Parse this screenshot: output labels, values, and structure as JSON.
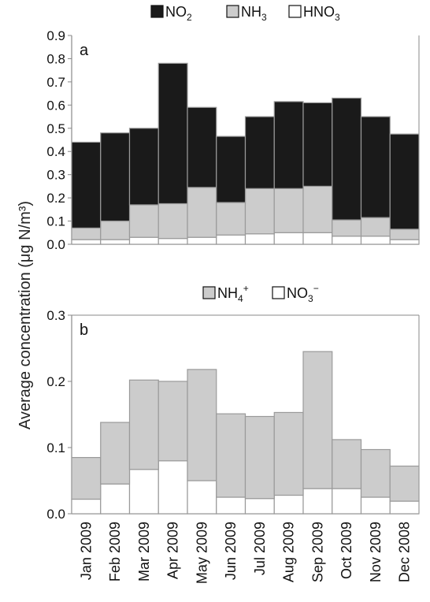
{
  "ylabel": "Average concentration (μg N/m³)",
  "months": [
    "Jan 2009",
    "Feb 2009",
    "Mar 2009",
    "Apr 2009",
    "May 2009",
    "Jun 2009",
    "Jul 2009",
    "Aug 2009",
    "Sep 2009",
    "Oct 2009",
    "Nov 2009",
    "Dec 2008"
  ],
  "chart_data": [
    {
      "type": "bar",
      "stacked": true,
      "panel": "a",
      "ylim": [
        0,
        0.9
      ],
      "yticks": [
        "0.0",
        "0.1",
        "0.2",
        "0.3",
        "0.4",
        "0.5",
        "0.6",
        "0.7",
        "0.8",
        "0.9"
      ],
      "legend_position": "top",
      "categories": [
        "Jan 2009",
        "Feb 2009",
        "Mar 2009",
        "Apr 2009",
        "May 2009",
        "Jun 2009",
        "Jul 2009",
        "Aug 2009",
        "Sep 2009",
        "Oct 2009",
        "Nov 2009",
        "Dec 2008"
      ],
      "series": [
        {
          "name": "HNO3",
          "legend_base": "HNO",
          "legend_sub": "3",
          "color": "#ffffff",
          "values": [
            0.02,
            0.02,
            0.03,
            0.025,
            0.03,
            0.04,
            0.045,
            0.05,
            0.05,
            0.035,
            0.035,
            0.02
          ]
        },
        {
          "name": "NH3",
          "legend_base": "NH",
          "legend_sub": "3",
          "color": "#cccccc",
          "values": [
            0.05,
            0.08,
            0.14,
            0.15,
            0.215,
            0.14,
            0.195,
            0.19,
            0.2,
            0.07,
            0.08,
            0.045
          ]
        },
        {
          "name": "NO2",
          "legend_base": "NO",
          "legend_sub": "2",
          "color": "#1a1a1a",
          "values": [
            0.37,
            0.38,
            0.33,
            0.605,
            0.345,
            0.285,
            0.31,
            0.375,
            0.36,
            0.525,
            0.435,
            0.41
          ]
        }
      ]
    },
    {
      "type": "bar",
      "stacked": true,
      "panel": "b",
      "ylim": [
        0,
        0.3
      ],
      "yticks": [
        "0.0",
        "0.1",
        "0.2",
        "0.3"
      ],
      "legend_position": "top",
      "categories": [
        "Jan 2009",
        "Feb 2009",
        "Mar 2009",
        "Apr 2009",
        "May 2009",
        "Jun 2009",
        "Jul 2009",
        "Aug 2009",
        "Sep 2009",
        "Oct 2009",
        "Nov 2009",
        "Dec 2008"
      ],
      "series": [
        {
          "name": "NO3-",
          "legend_base": "NO",
          "legend_sub": "3",
          "legend_sup": "−",
          "color": "#ffffff",
          "values": [
            0.022,
            0.045,
            0.067,
            0.08,
            0.05,
            0.025,
            0.023,
            0.028,
            0.038,
            0.038,
            0.025,
            0.019
          ]
        },
        {
          "name": "NH4+",
          "legend_base": "NH",
          "legend_sub": "4",
          "legend_sup": "+",
          "color": "#cccccc",
          "values": [
            0.063,
            0.093,
            0.135,
            0.12,
            0.168,
            0.126,
            0.124,
            0.125,
            0.207,
            0.074,
            0.072,
            0.053
          ]
        }
      ]
    }
  ]
}
